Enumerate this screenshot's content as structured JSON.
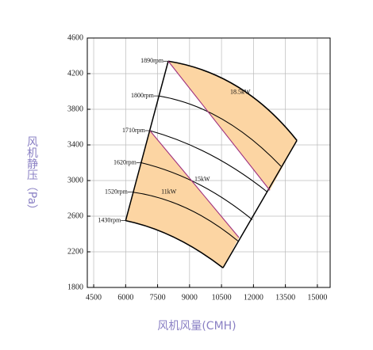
{
  "chart_data": {
    "type": "line",
    "x_label": "风机风量(CMH)",
    "y_label": "风机静压（Pa）",
    "xlim": [
      4200,
      15600
    ],
    "xticks": [
      4500,
      6000,
      7500,
      9000,
      10500,
      12000,
      13500,
      15000
    ],
    "ylim": [
      1800,
      4600
    ],
    "yticks": [
      1800,
      2200,
      2600,
      3000,
      3400,
      3800,
      4200,
      4600
    ],
    "grid": true,
    "fill_color": "#fcd5a3",
    "series": [
      {
        "name": "1890rpm",
        "color": "#000000",
        "x": [
          8000,
          11280,
          14040
        ],
        "y": [
          4340,
          4050,
          3450
        ]
      },
      {
        "name": "1800rpm",
        "color": "#000000",
        "x": [
          7550,
          10530,
          13290
        ],
        "y": [
          3950,
          3690,
          3160
        ]
      },
      {
        "name": "1710rpm",
        "color": "#000000",
        "x": [
          7140,
          9980,
          12660
        ],
        "y": [
          3560,
          3290,
          2870
        ]
      },
      {
        "name": "1620rpm",
        "color": "#000000",
        "x": [
          6730,
          9420,
          11950
        ],
        "y": [
          3200,
          2960,
          2560
        ]
      },
      {
        "name": "1520rpm",
        "color": "#000000",
        "x": [
          6320,
          8860,
          11280
        ],
        "y": [
          2870,
          2690,
          2320
        ]
      },
      {
        "name": "1430rpm",
        "color": "#000000",
        "x": [
          6000,
          8300,
          10570
        ],
        "y": [
          2550,
          2360,
          2020
        ]
      },
      {
        "name": "15kW",
        "color": "#a0307f",
        "x": [
          7140,
          11320
        ],
        "y": [
          3560,
          2360
        ]
      },
      {
        "name": "18.5kW",
        "color": "#a0307f",
        "x": [
          8000,
          12770
        ],
        "y": [
          4340,
          2890
        ]
      }
    ],
    "annotations": [
      "11kW"
    ]
  }
}
